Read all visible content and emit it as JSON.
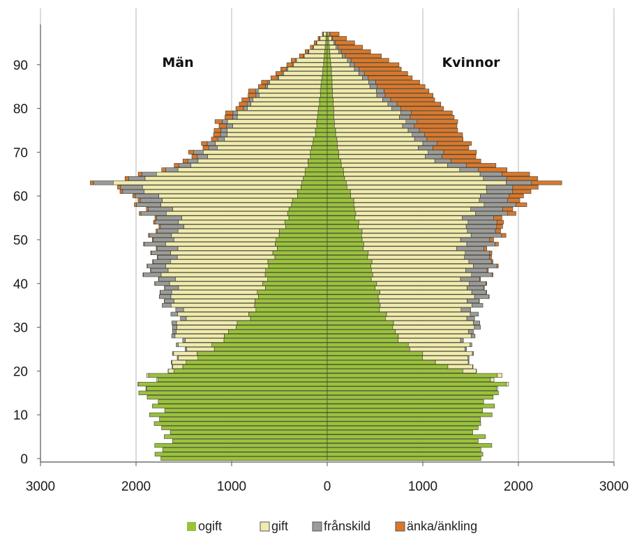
{
  "chart_data": {
    "type": "bar",
    "orientation": "horizontal",
    "stacking": "stacked",
    "xlim": [
      -3000,
      3000
    ],
    "ylim": [
      0,
      97
    ],
    "x_ticks": [
      -3000,
      -2000,
      -1000,
      0,
      1000,
      2000,
      3000
    ],
    "x_tick_labels": [
      "3000",
      "2000",
      "1000",
      "0",
      "1000",
      "2000",
      "3000"
    ],
    "y_ticks": [
      0,
      10,
      20,
      30,
      40,
      50,
      60,
      70,
      80,
      90
    ],
    "y_tick_labels": [
      "0",
      "10",
      "20",
      "30",
      "40",
      "50",
      "60",
      "70",
      "80",
      "90"
    ],
    "grid": "vertical gridlines at x ticks",
    "legend_position": "bottom",
    "groups": [
      {
        "name": "Män",
        "side": "left"
      },
      {
        "name": "Kvinnor",
        "side": "right"
      }
    ],
    "series": [
      {
        "name": "ogift",
        "color": "#9ac23c"
      },
      {
        "name": "gift",
        "color": "#f0ebae"
      },
      {
        "name": "frånskild",
        "color": "#9b9b9b"
      },
      {
        "name": "änka/änkling",
        "color": "#d9782d"
      }
    ],
    "men_key_points": {
      "age": [
        0,
        5,
        10,
        15,
        19,
        21,
        23,
        26,
        29,
        32,
        35,
        38,
        42,
        46,
        50,
        54,
        57,
        60,
        62,
        63,
        65,
        68,
        71,
        74,
        78,
        82,
        86,
        90,
        93,
        97
      ],
      "ogift": [
        1740,
        1700,
        1770,
        1900,
        1860,
        1500,
        1350,
        1200,
        1000,
        850,
        750,
        700,
        640,
        580,
        520,
        440,
        390,
        330,
        290,
        260,
        230,
        200,
        160,
        130,
        100,
        80,
        60,
        40,
        25,
        10
      ],
      "gift": [
        0,
        0,
        0,
        0,
        20,
        100,
        200,
        350,
        550,
        700,
        820,
        920,
        1020,
        1060,
        1080,
        1110,
        1230,
        1500,
        1700,
        1850,
        1500,
        1150,
        1000,
        950,
        850,
        700,
        520,
        320,
        160,
        30
      ],
      "frånskild": [
        0,
        0,
        0,
        0,
        0,
        5,
        10,
        20,
        40,
        60,
        90,
        130,
        180,
        200,
        220,
        250,
        260,
        240,
        220,
        200,
        150,
        110,
        90,
        70,
        50,
        35,
        20,
        12,
        6,
        2
      ],
      "änka/änkling": [
        0,
        0,
        0,
        0,
        0,
        0,
        0,
        0,
        0,
        0,
        0,
        2,
        4,
        6,
        10,
        15,
        20,
        25,
        30,
        35,
        40,
        50,
        60,
        70,
        80,
        80,
        70,
        55,
        35,
        10
      ]
    },
    "women_key_points": {
      "age": [
        0,
        5,
        10,
        15,
        19,
        21,
        23,
        26,
        29,
        32,
        35,
        38,
        42,
        46,
        50,
        54,
        57,
        60,
        62,
        63,
        65,
        68,
        71,
        74,
        78,
        82,
        86,
        90,
        93,
        97
      ],
      "ogift": [
        1640,
        1600,
        1620,
        1800,
        1720,
        1280,
        1000,
        820,
        720,
        620,
        560,
        520,
        480,
        430,
        370,
        320,
        290,
        250,
        220,
        200,
        170,
        140,
        110,
        90,
        70,
        60,
        50,
        40,
        25,
        10
      ],
      "gift": [
        0,
        0,
        0,
        0,
        50,
        250,
        450,
        650,
        780,
        860,
        930,
        960,
        1000,
        1020,
        1050,
        1160,
        1240,
        1360,
        1540,
        1620,
        1340,
        1000,
        860,
        800,
        700,
        530,
        360,
        210,
        90,
        15
      ],
      "frånskild": [
        0,
        0,
        0,
        0,
        0,
        5,
        10,
        20,
        50,
        80,
        110,
        160,
        210,
        260,
        300,
        320,
        330,
        300,
        270,
        260,
        220,
        180,
        150,
        130,
        110,
        90,
        70,
        45,
        25,
        5
      ],
      "änka/änkling": [
        0,
        0,
        0,
        0,
        0,
        0,
        0,
        0,
        0,
        0,
        0,
        5,
        10,
        20,
        40,
        70,
        100,
        150,
        250,
        320,
        300,
        320,
        360,
        400,
        440,
        470,
        480,
        440,
        320,
        90
      ]
    }
  }
}
